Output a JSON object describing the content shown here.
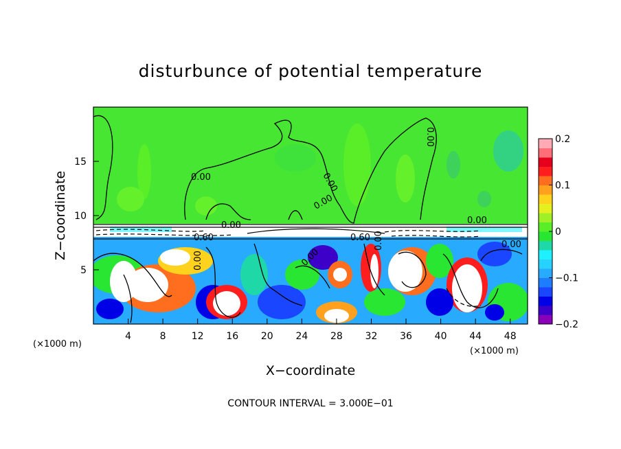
{
  "chart_data": {
    "type": "heatmap",
    "title": "disturbunce of potential temperature",
    "xlabel": "X−coordinate",
    "ylabel": "Z−coordinate",
    "x_unit": "(×1000 m)",
    "x_unit_right": "(×1000 m)",
    "xlim": [
      0,
      50
    ],
    "ylim": [
      0,
      20
    ],
    "xticks": [
      4,
      8,
      12,
      16,
      20,
      24,
      28,
      32,
      36,
      40,
      44,
      48
    ],
    "yticks": [
      5,
      10,
      15
    ],
    "colorbar": {
      "range": [
        -0.2,
        0.2
      ],
      "ticks": [
        0.2,
        0.1,
        0,
        -0.1,
        -0.2
      ],
      "tick_labels": [
        "0.2",
        "0.1",
        "0",
        "−0.1",
        "−0.2"
      ],
      "colors": [
        "#8a00b8",
        "#3c00c8",
        "#0000e6",
        "#1a46ff",
        "#1e7cff",
        "#28aaff",
        "#28d2ff",
        "#1ef0ff",
        "#1ed8a8",
        "#28e632",
        "#5aee28",
        "#a0f028",
        "#e6f01e",
        "#ffd21e",
        "#ffa01e",
        "#ff6e1e",
        "#ff1e1e",
        "#e6001e",
        "#ff6e78",
        "#ffaab4"
      ]
    },
    "contour_labels": [
      "0.00",
      "0.00",
      "0.00",
      "0.00",
      "0.00",
      "0.00",
      "0.60",
      "0.60",
      "0.00",
      "0.00",
      "0.00",
      "0.00"
    ],
    "annotation": "CONTOUR INTERVAL = 3.000E−01"
  }
}
